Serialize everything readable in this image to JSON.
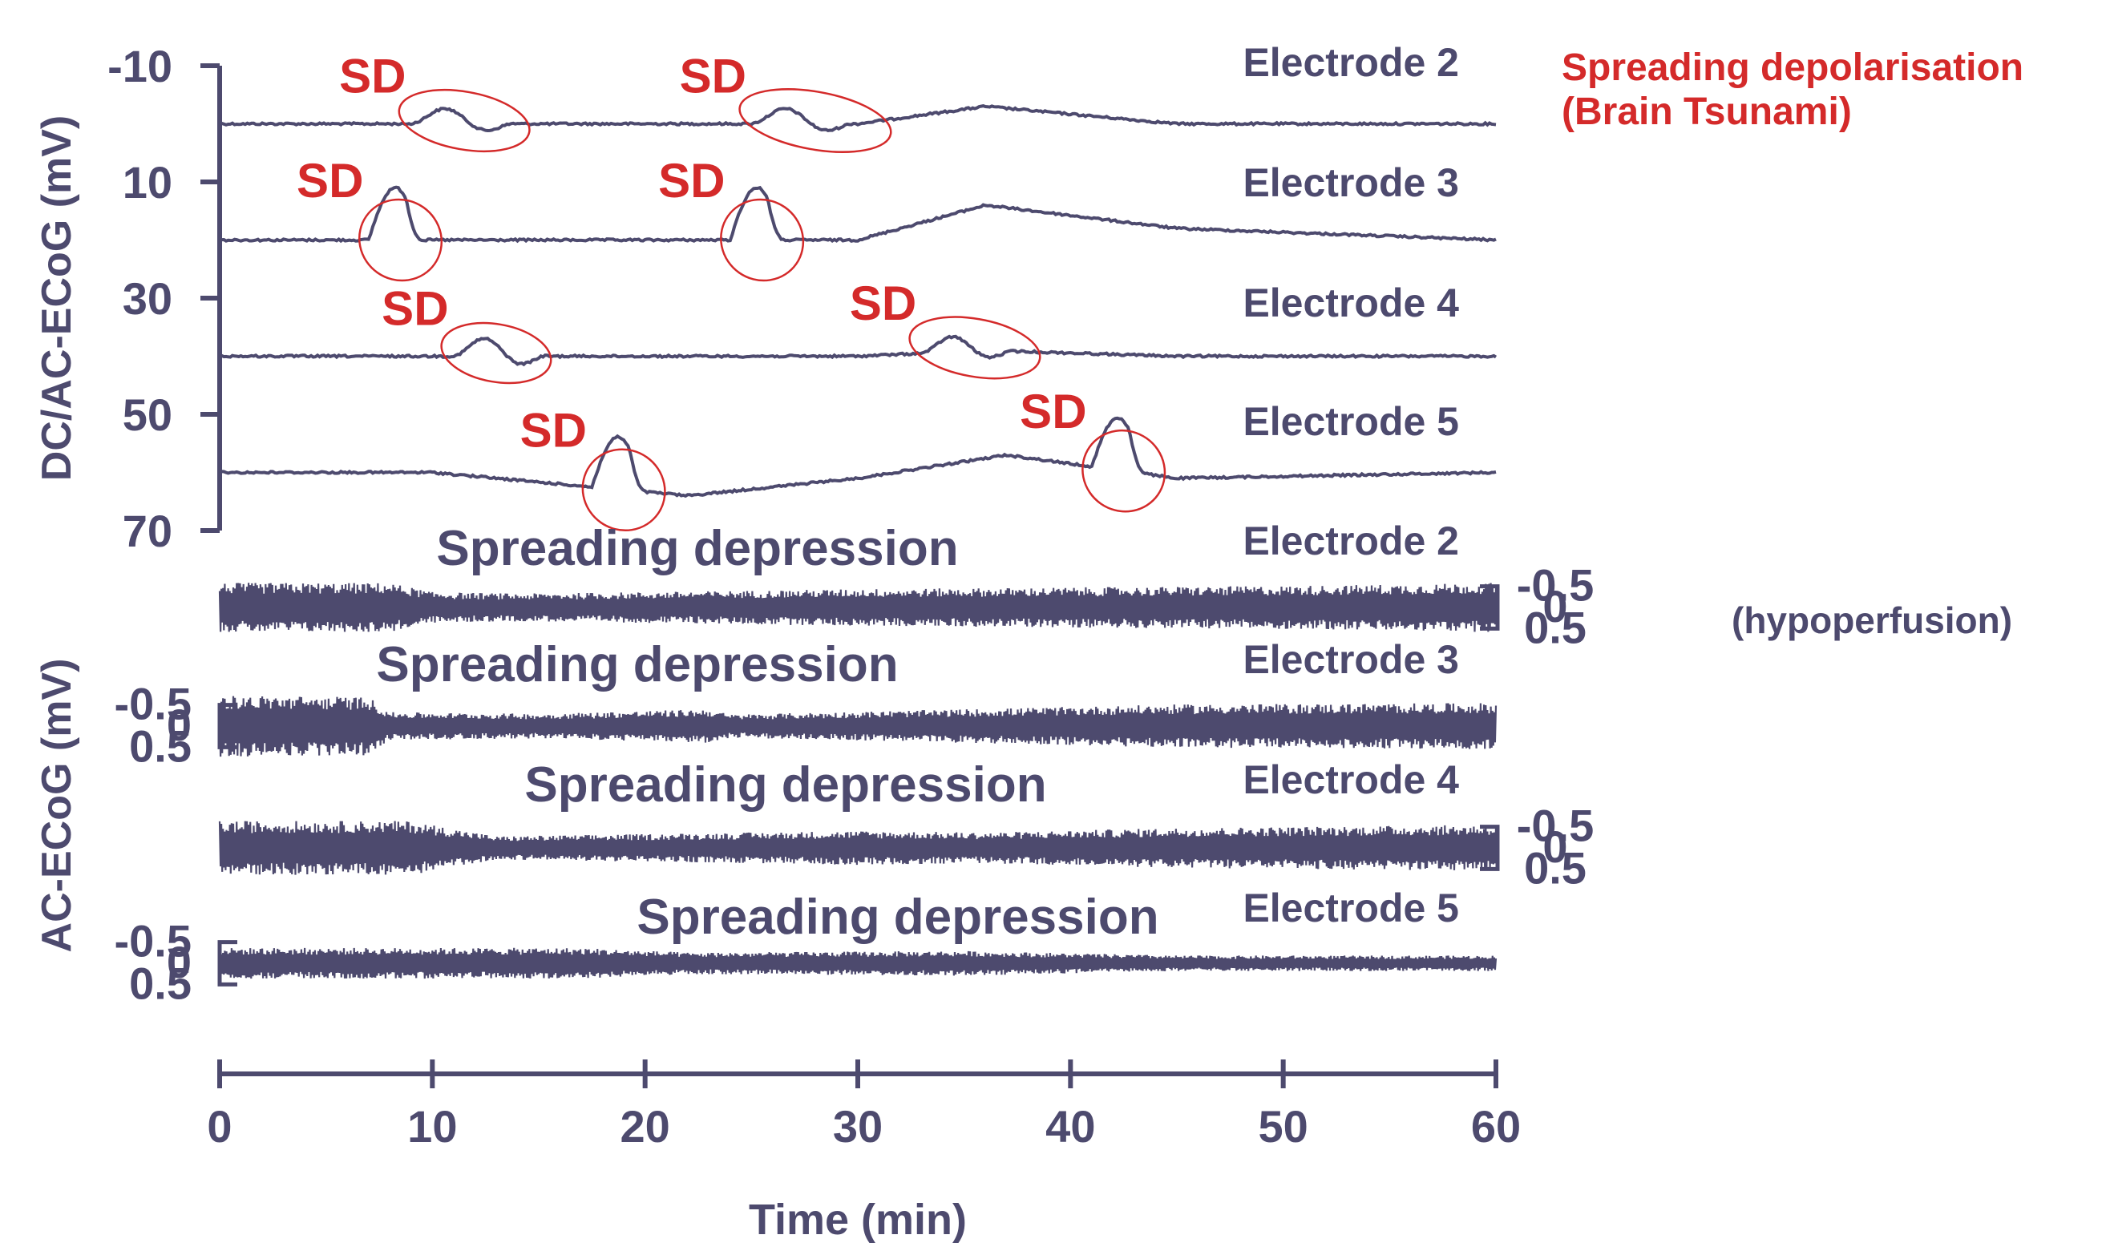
{
  "chart_data": {
    "type": "line",
    "title": "",
    "xlabel": "Time (min)",
    "xlim": [
      0,
      60
    ],
    "x_ticks": [
      0,
      10,
      20,
      30,
      40,
      50,
      60
    ],
    "x_tick_labels": [
      "0",
      "10",
      "20",
      "30",
      "40",
      "50",
      "60"
    ],
    "dc_panel": {
      "ylabel": "DC/AC-ECoG (mV)",
      "ylim": [
        -10,
        70
      ],
      "y_ticks": [
        -10,
        10,
        30,
        50,
        70
      ],
      "y_tick_labels": [
        "-10",
        "10",
        "30",
        "50",
        "70"
      ],
      "series": [
        {
          "name": "Electrode 2",
          "baseline": 0,
          "sd_type": "bump",
          "sd_events": [
            {
              "t0": 9,
              "t1": 14,
              "amp": 3,
              "dur": 5
            },
            {
              "t0": 25,
              "t1": 31,
              "amp": 3,
              "dur": 5
            }
          ],
          "drift": [
            [
              30,
              0
            ],
            [
              36,
              -3
            ],
            [
              45,
              0
            ],
            [
              60,
              0
            ]
          ]
        },
        {
          "name": "Electrode 3",
          "baseline": 20,
          "sd_type": "peak",
          "sd_events": [
            {
              "t0": 7,
              "t1": 10,
              "amp": 9,
              "dur": 2.5
            },
            {
              "t0": 24,
              "t1": 27,
              "amp": 9,
              "dur": 2.5
            }
          ],
          "drift": [
            [
              30,
              0
            ],
            [
              36,
              -6
            ],
            [
              45,
              -2
            ],
            [
              60,
              0
            ]
          ]
        },
        {
          "name": "Electrode 4",
          "baseline": 40,
          "sd_type": "bump",
          "sd_events": [
            {
              "t0": 11,
              "t1": 15,
              "amp": 3.5,
              "dur": 4.5
            },
            {
              "t0": 33,
              "t1": 38,
              "amp": 3,
              "dur": 4.5
            }
          ],
          "drift": [
            [
              30,
              0
            ],
            [
              36,
              -1
            ],
            [
              45,
              0
            ],
            [
              60,
              0
            ]
          ]
        },
        {
          "name": "Electrode 5",
          "baseline": 60,
          "sd_type": "peak",
          "sd_events": [
            {
              "t0": 17.5,
              "t1": 20.5,
              "amp": 9,
              "dur": 2.5
            },
            {
              "t0": 41,
              "t1": 44,
              "amp": 9,
              "dur": 2.5
            }
          ],
          "drift": [
            [
              10,
              0
            ],
            [
              22,
              4
            ],
            [
              30,
              1
            ],
            [
              37,
              -3
            ],
            [
              45,
              1
            ],
            [
              60,
              0
            ]
          ]
        }
      ]
    },
    "ac_panel": {
      "ylabel": "AC-ECoG (mV)",
      "y_tick_labels": [
        "-0.5",
        "0",
        "0.5"
      ],
      "traces": [
        {
          "electrode": "Electrode 2",
          "label": "Spreading depression",
          "envelope": [
            [
              0,
              0.32
            ],
            [
              8,
              0.32
            ],
            [
              10,
              0.2
            ],
            [
              14,
              0.18
            ],
            [
              20,
              0.2
            ],
            [
              30,
              0.24
            ],
            [
              40,
              0.26
            ],
            [
              50,
              0.28
            ],
            [
              60,
              0.32
            ]
          ]
        },
        {
          "electrode": "Electrode 3",
          "label": "Spreading depression",
          "envelope": [
            [
              0,
              0.4
            ],
            [
              7,
              0.38
            ],
            [
              8,
              0.18
            ],
            [
              15,
              0.16
            ],
            [
              23,
              0.22
            ],
            [
              24,
              0.15
            ],
            [
              32,
              0.2
            ],
            [
              45,
              0.28
            ],
            [
              60,
              0.3
            ]
          ]
        },
        {
          "electrode": "Electrode 4",
          "label": "Spreading depression",
          "envelope": [
            [
              0,
              0.35
            ],
            [
              9,
              0.35
            ],
            [
              13,
              0.15
            ],
            [
              20,
              0.18
            ],
            [
              30,
              0.22
            ],
            [
              36,
              0.2
            ],
            [
              45,
              0.26
            ],
            [
              60,
              0.3
            ]
          ]
        },
        {
          "electrode": "Electrode 5",
          "label": "Spreading depression",
          "envelope": [
            [
              0,
              0.2
            ],
            [
              17,
              0.2
            ],
            [
              22,
              0.14
            ],
            [
              35,
              0.16
            ],
            [
              45,
              0.1
            ],
            [
              60,
              0.1
            ]
          ]
        }
      ]
    },
    "annotations": {
      "sd_marker": "SD",
      "legend_title": "Spreading depolarisation",
      "legend_subtitle": "(Brain Tsunami)",
      "hypoperfusion_note": "(hypoperfusion)"
    },
    "colors": {
      "trace": "#4d4a6e",
      "annotation": "#d42a2a"
    }
  }
}
